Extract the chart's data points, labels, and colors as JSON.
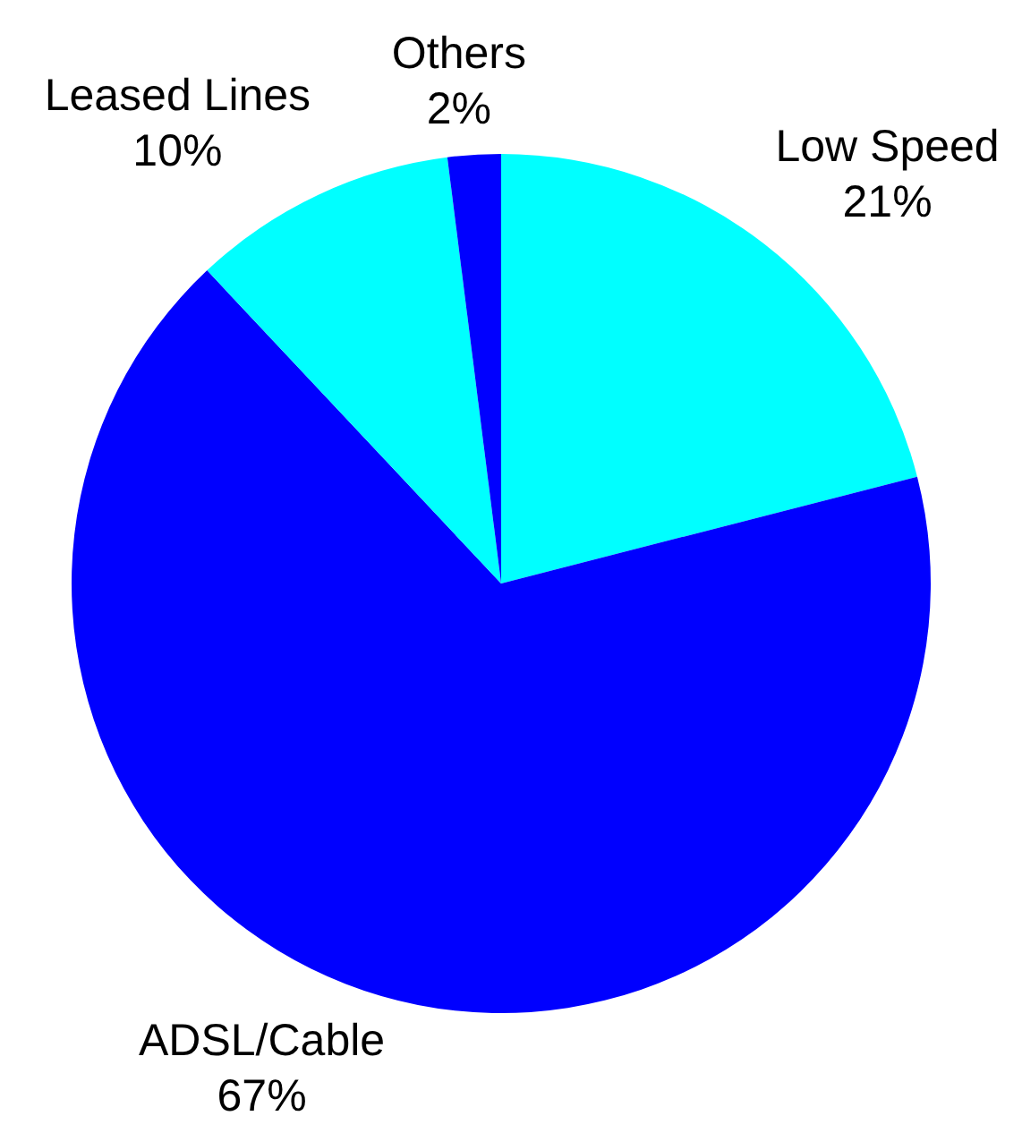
{
  "chart_data": {
    "type": "pie",
    "categories": [
      "Low Speed",
      "ADSL/Cable",
      "Leased Lines",
      "Others"
    ],
    "values": [
      21,
      67,
      10,
      2
    ],
    "value_labels": [
      "21%",
      "67%",
      "10%",
      "2%"
    ],
    "colors": [
      "#00ffff",
      "#0000ff",
      "#00ffff",
      "#0000ff"
    ]
  }
}
